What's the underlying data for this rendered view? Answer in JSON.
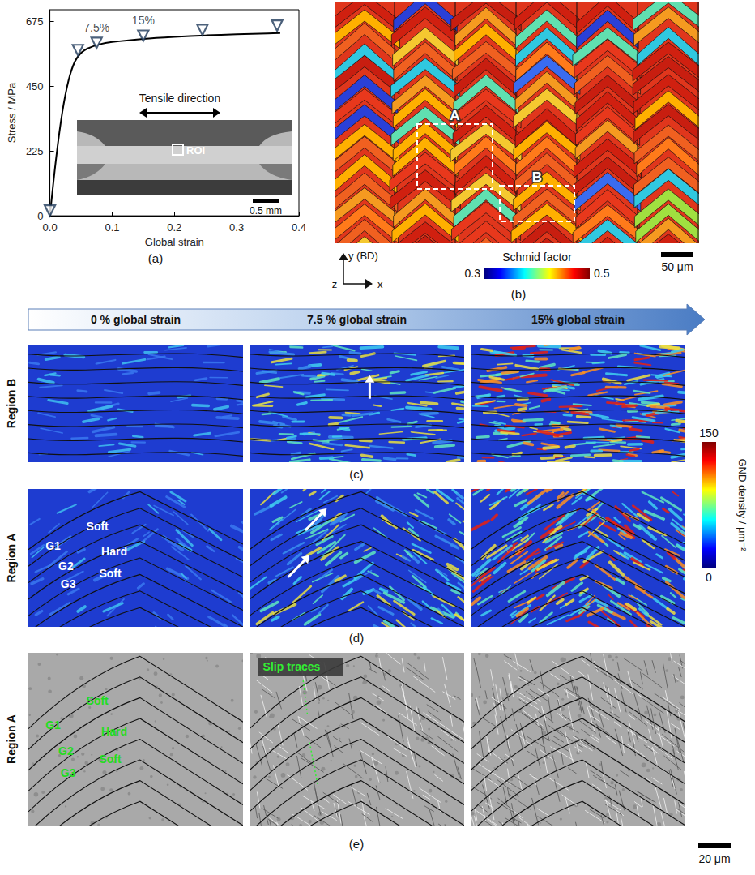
{
  "chart_data": {
    "type": "line",
    "panel_label": "(a)",
    "x_label": "Global strain",
    "y_label": "Stress / MPa",
    "xlim": [
      0,
      0.4
    ],
    "xticks": [
      {
        "value": 0,
        "label": "0.0"
      },
      0.1,
      0.2,
      0.3,
      0.4
    ],
    "ylim": [
      0,
      715
    ],
    "yticks": [
      0,
      225,
      450,
      675
    ],
    "grid": false,
    "series": [
      {
        "type": "line",
        "color": "#000000",
        "marker": "none",
        "x": [
          0,
          0.01,
          0.02,
          0.03,
          0.04,
          0.05,
          0.06,
          0.08,
          0.1,
          0.15,
          0.2,
          0.25,
          0.3,
          0.35,
          0.37
        ],
        "values": [
          0,
          200,
          360,
          470,
          535,
          565,
          580,
          595,
          603,
          614,
          621,
          626,
          630,
          633,
          634
        ]
      },
      {
        "type": "scatter",
        "color": "#1f3a5a",
        "marker": "triangle-down",
        "x": [
          0,
          0.045,
          0.075,
          0.15,
          0.245,
          0.365
        ],
        "values": [
          18,
          575,
          600,
          625,
          645,
          660
        ]
      }
    ],
    "annotations": [
      {
        "text": "7.5%",
        "x": 0.075
      },
      {
        "text": "15%",
        "x": 0.15
      }
    ],
    "inset": {
      "title": "Tensile direction",
      "roi_label": "ROI",
      "scale_bar": "0.5 mm"
    }
  },
  "panel_b": {
    "label": "(b)",
    "regions": [
      "A",
      "B"
    ],
    "axes": {
      "y": "y (BD)",
      "z": "z",
      "x": "x"
    },
    "colorbar": {
      "title": "Schmid factor",
      "range": [
        0.3,
        0.5
      ],
      "ticks": [
        0.3,
        0.5
      ]
    },
    "scale_bar": "50 μm"
  },
  "strain_steps": [
    "0 % global strain",
    "7.5 % global strain",
    "15% global strain"
  ],
  "rows": [
    {
      "label": "(c)",
      "region": "Region B",
      "kind": "gnd"
    },
    {
      "label": "(d)",
      "region": "Region A",
      "kind": "gnd",
      "grain_labels": [
        "Soft",
        "G1",
        "Hard",
        "G2",
        "Soft",
        "G3"
      ]
    },
    {
      "label": "(e)",
      "region": "Region A",
      "kind": "sem",
      "grain_labels": [
        "Soft",
        "G1",
        "Hard",
        "G2",
        "Soft",
        "G3"
      ],
      "annotation": "Slip traces"
    }
  ],
  "gnd_colorbar": {
    "title": "GND density / μm⁻²",
    "range": [
      0,
      150
    ],
    "ticks": [
      0,
      150
    ]
  },
  "scale_bar": "20 μm"
}
